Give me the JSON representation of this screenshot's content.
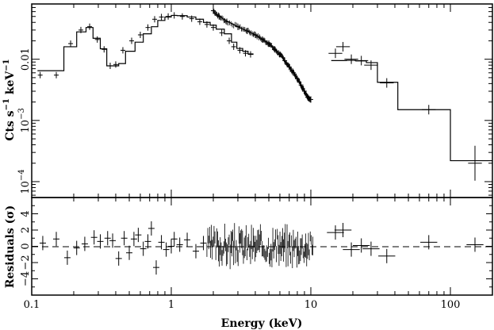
{
  "chart_data": [
    {
      "type": "scatter",
      "panel": "spectrum",
      "xlabel": "Energy (keV)",
      "ylabel": "Cts s-1 keV-1",
      "ylabel_parts": {
        "main": "Cts s",
        "exp1": "−1",
        "mid": " keV",
        "exp2": "−1"
      },
      "xscale": "log",
      "yscale": "log",
      "xlim": [
        0.1,
        200
      ],
      "ylim": [
        5.5e-05,
        0.08
      ],
      "ytick_labels": [
        {
          "value": 0.01,
          "text": "0.01",
          "rotated": true
        },
        {
          "value": 0.001,
          "base": "10",
          "exp": "−3"
        },
        {
          "value": 0.0001,
          "base": "10",
          "exp": "−4"
        }
      ],
      "series": [
        {
          "points": [
            [
              0.115,
              0.0055
            ],
            [
              0.15,
              0.0055
            ],
            [
              0.19,
              0.018
            ],
            [
              0.225,
              0.03
            ],
            [
              0.26,
              0.034
            ],
            [
              0.295,
              0.021
            ],
            [
              0.33,
              0.0145
            ],
            [
              0.365,
              0.0078
            ],
            [
              0.4,
              0.0082
            ],
            [
              0.45,
              0.014
            ],
            [
              0.52,
              0.02
            ],
            [
              0.6,
              0.025
            ],
            [
              0.68,
              0.033
            ],
            [
              0.76,
              0.045
            ],
            [
              0.85,
              0.049
            ],
            [
              0.95,
              0.05
            ],
            [
              1.05,
              0.052
            ],
            [
              1.2,
              0.05
            ],
            [
              1.4,
              0.046
            ],
            [
              1.6,
              0.041
            ],
            [
              1.8,
              0.037
            ],
            [
              2.0,
              0.033
            ],
            [
              2.3,
              0.027
            ],
            [
              2.6,
              0.02
            ],
            [
              2.8,
              0.016
            ],
            [
              3.1,
              0.014
            ],
            [
              3.4,
              0.0125
            ],
            [
              3.7,
              0.012
            ]
          ]
        },
        {
          "points": [
            [
              2.0,
              0.062
            ],
            [
              2.2,
              0.05
            ],
            [
              2.5,
              0.041
            ],
            [
              3.0,
              0.034
            ],
            [
              3.5,
              0.029
            ],
            [
              4.0,
              0.025
            ],
            [
              4.5,
              0.021
            ],
            [
              5.0,
              0.018
            ],
            [
              5.5,
              0.0145
            ],
            [
              6.0,
              0.012
            ],
            [
              6.5,
              0.0095
            ],
            [
              7.0,
              0.0075
            ],
            [
              7.5,
              0.006
            ],
            [
              8.0,
              0.0048
            ],
            [
              8.5,
              0.0038
            ],
            [
              9.0,
              0.003
            ],
            [
              9.5,
              0.0024
            ],
            [
              10.0,
              0.0022
            ]
          ]
        },
        {
          "points": [
            [
              15.0,
              0.0125
            ],
            [
              17.0,
              0.016
            ],
            [
              19.5,
              0.01
            ],
            [
              23.0,
              0.0095
            ],
            [
              27.0,
              0.008
            ],
            [
              35.0,
              0.0041
            ],
            [
              70.0,
              0.0015
            ],
            [
              150.0,
              0.0002
            ]
          ]
        }
      ],
      "model_steps": [
        [
          0.11,
          0.0065
        ],
        [
          0.17,
          0.016
        ],
        [
          0.21,
          0.028
        ],
        [
          0.245,
          0.033
        ],
        [
          0.275,
          0.022
        ],
        [
          0.31,
          0.0148
        ],
        [
          0.345,
          0.0078
        ],
        [
          0.42,
          0.0085
        ],
        [
          0.47,
          0.0135
        ],
        [
          0.55,
          0.019
        ],
        [
          0.63,
          0.026
        ],
        [
          0.72,
          0.034
        ],
        [
          0.8,
          0.043
        ],
        [
          0.9,
          0.049
        ],
        [
          1.0,
          0.052
        ],
        [
          1.1,
          0.0515
        ],
        [
          1.3,
          0.049
        ],
        [
          1.5,
          0.045
        ],
        [
          1.7,
          0.04
        ],
        [
          1.9,
          0.036
        ],
        [
          2.1,
          0.031
        ],
        [
          2.4,
          0.026
        ],
        [
          2.7,
          0.019
        ],
        [
          2.95,
          0.015
        ],
        [
          3.25,
          0.0135
        ],
        [
          3.55,
          0.0122
        ],
        [
          3.85,
          0.0118
        ]
      ],
      "model_curve": [
        [
          2.0,
          0.058
        ],
        [
          2.5,
          0.042
        ],
        [
          3.0,
          0.034
        ],
        [
          4.0,
          0.025
        ],
        [
          5.0,
          0.018
        ],
        [
          6.0,
          0.012
        ],
        [
          7.0,
          0.0075
        ],
        [
          8.0,
          0.0049
        ],
        [
          9.0,
          0.0031
        ],
        [
          10.0,
          0.0022
        ]
      ],
      "model_hard": [
        [
          14.0,
          0.0095
        ],
        [
          18.0,
          0.0096
        ],
        [
          21.0,
          0.0094
        ],
        [
          25.0,
          0.0088
        ],
        [
          30.0,
          0.0042
        ],
        [
          42.0,
          0.0015
        ],
        [
          100.0,
          0.00022
        ],
        [
          200.0,
          0.00022
        ]
      ]
    },
    {
      "type": "scatter",
      "panel": "residuals",
      "xlabel": "Energy (keV)",
      "ylabel": "Residuals (σ)",
      "xscale": "log",
      "xlim": [
        0.1,
        200
      ],
      "ylim": [
        -6,
        6
      ],
      "yticks": [
        -4,
        -2,
        0,
        2,
        4
      ],
      "xtick_labels": [
        {
          "value": 0.1,
          "text": "0.1"
        },
        {
          "value": 1,
          "text": "1"
        },
        {
          "value": 10,
          "text": "10"
        },
        {
          "value": 100,
          "text": "100"
        }
      ],
      "zero_line": "dashed",
      "points": [
        [
          0.12,
          0.4
        ],
        [
          0.15,
          0.9
        ],
        [
          0.18,
          -1.4
        ],
        [
          0.21,
          -0.2
        ],
        [
          0.24,
          0.3
        ],
        [
          0.28,
          1.1
        ],
        [
          0.31,
          0.6
        ],
        [
          0.35,
          1.0
        ],
        [
          0.38,
          0.7
        ],
        [
          0.42,
          -1.5
        ],
        [
          0.46,
          1.0
        ],
        [
          0.5,
          -0.8
        ],
        [
          0.54,
          0.9
        ],
        [
          0.58,
          1.4
        ],
        [
          0.63,
          -0.3
        ],
        [
          0.68,
          0.6
        ],
        [
          0.72,
          2.2
        ],
        [
          0.78,
          -2.6
        ],
        [
          0.85,
          0.5
        ],
        [
          0.92,
          -0.4
        ],
        [
          1.0,
          0.0
        ],
        [
          1.05,
          0.9
        ],
        [
          1.15,
          0.2
        ],
        [
          1.3,
          0.8
        ],
        [
          1.5,
          -0.6
        ],
        [
          1.7,
          0.4
        ]
      ],
      "dense_range": [
        1.8,
        10.5
      ],
      "hard_points": [
        [
          15.0,
          1.7
        ],
        [
          17.0,
          2.0
        ],
        [
          19.5,
          -0.4
        ],
        [
          23.0,
          0.1
        ],
        [
          27.0,
          -0.3
        ],
        [
          35.0,
          -1.2
        ],
        [
          70.0,
          0.5
        ],
        [
          150.0,
          0.2
        ]
      ]
    }
  ]
}
